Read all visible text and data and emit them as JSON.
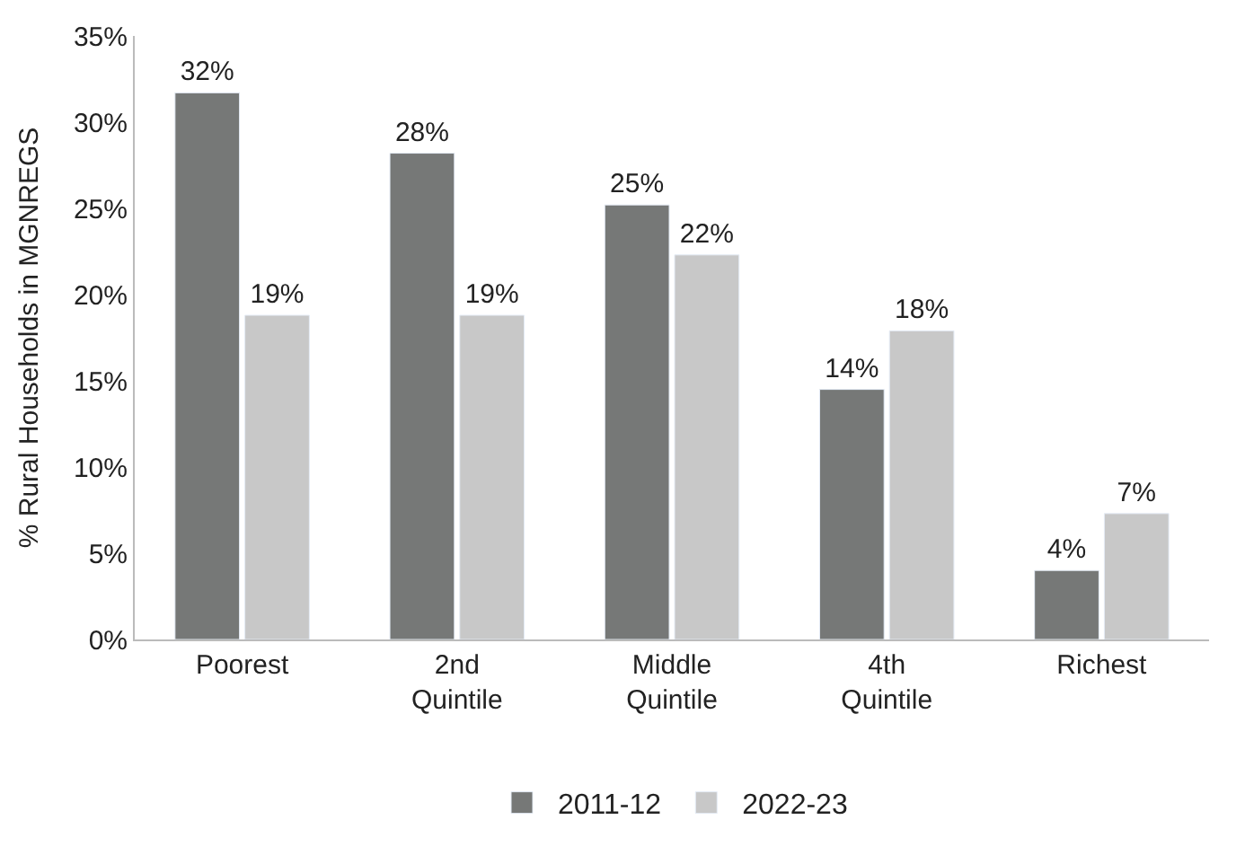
{
  "chart_data": {
    "type": "bar",
    "ylabel": "% Rural Households in MGNREGS",
    "categories": [
      "Poorest",
      "2nd Quintile",
      "Middle Quintile",
      "4th Quintile",
      "Richest"
    ],
    "series": [
      {
        "name": "2011-12",
        "color": "#767877",
        "values": [
          31.7,
          28.2,
          25.2,
          14.5,
          4.0
        ],
        "value_labels": [
          "32%",
          "28%",
          "25%",
          "14%",
          "4%"
        ]
      },
      {
        "name": "2022-23",
        "color": "#c8c8c8",
        "values": [
          18.8,
          18.8,
          22.3,
          17.9,
          7.3
        ],
        "value_labels": [
          "19%",
          "19%",
          "22%",
          "18%",
          "7%"
        ]
      }
    ],
    "ylim": [
      0,
      35
    ],
    "yticks": [
      {
        "value": 0,
        "label": "0%"
      },
      {
        "value": 5,
        "label": "5%"
      },
      {
        "value": 10,
        "label": "10%"
      },
      {
        "value": 15,
        "label": "15%"
      },
      {
        "value": 20,
        "label": "20%"
      },
      {
        "value": 25,
        "label": "25%"
      },
      {
        "value": 30,
        "label": "30%"
      },
      {
        "value": 35,
        "label": "35%"
      }
    ],
    "legend": "bottom"
  }
}
